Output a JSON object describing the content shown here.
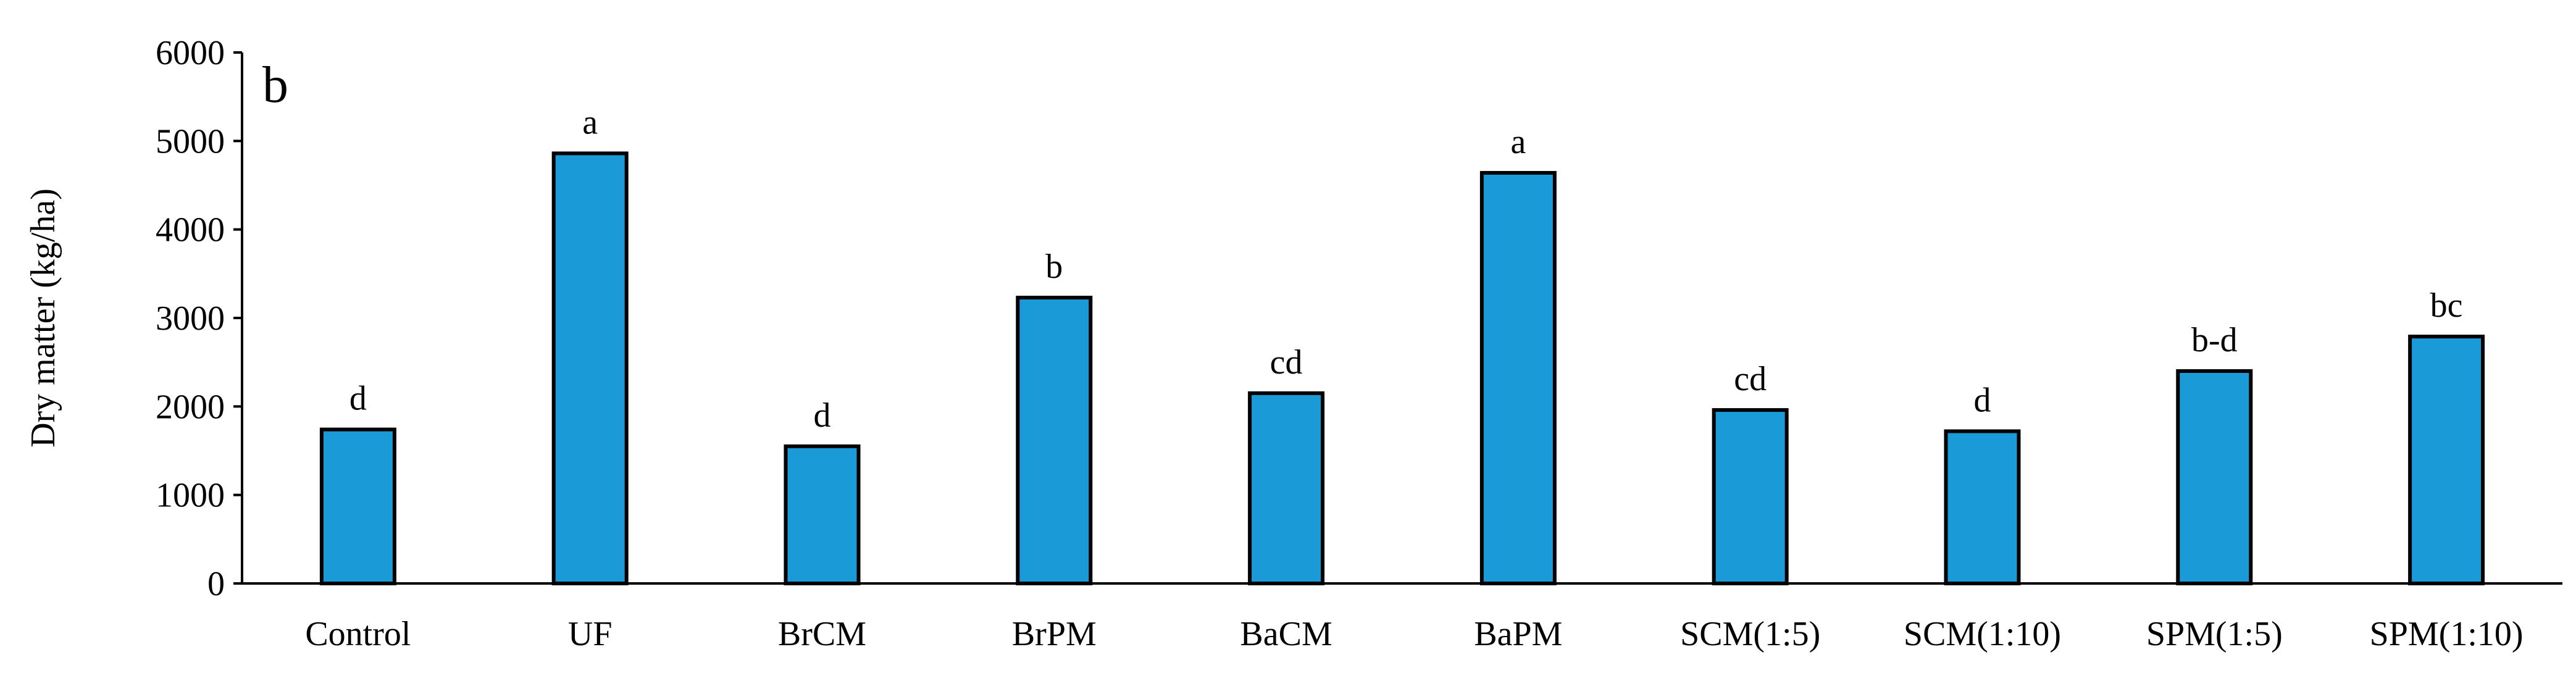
{
  "chart_data": {
    "type": "bar",
    "panel_label": "b",
    "ylabel": "Dry matter (kg/ha)",
    "xlabel": "",
    "ylim": [
      0,
      6000
    ],
    "yticks": [
      0,
      1000,
      2000,
      3000,
      4000,
      5000,
      6000
    ],
    "grid": false,
    "legend": "none",
    "bar_color": "#1a9ad7",
    "categories": [
      "Control",
      "UF",
      "BrCM",
      "BrPM",
      "BaCM",
      "BaPM",
      "SCM(1:5)",
      "SCM(1:10)",
      "SPM(1:5)",
      "SPM(1:10)"
    ],
    "values": [
      1740,
      4860,
      1550,
      3230,
      2150,
      4640,
      1960,
      1720,
      2400,
      2790
    ],
    "significance_letters": [
      "d",
      "a",
      "d",
      "b",
      "cd",
      "a",
      "cd",
      "d",
      "b-d",
      "bc"
    ]
  }
}
